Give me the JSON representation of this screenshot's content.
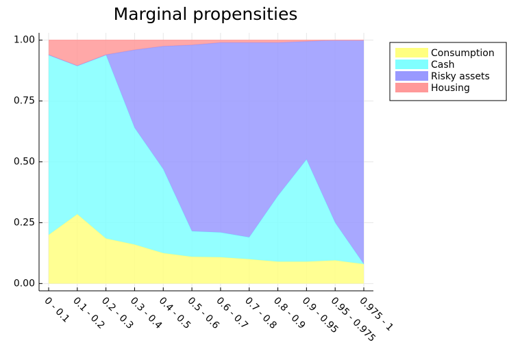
{
  "chart_data": {
    "type": "stacked-area",
    "title": "Marginal propensities",
    "categories": [
      "0 - 0.1",
      "0.1 - 0.2",
      "0.2 - 0.3",
      "0.3 - 0.4",
      "0.4 - 0.5",
      "0.5 - 0.6",
      "0.6 - 0.7",
      "0.7 - 0.8",
      "0.8 - 0.9",
      "0.9 - 0.95",
      "0.95 - 0.975",
      "0.975 - 1"
    ],
    "series": [
      {
        "name": "Consumption",
        "color": "#ffff80",
        "values": [
          0.2,
          0.285,
          0.185,
          0.16,
          0.125,
          0.11,
          0.108,
          0.1,
          0.09,
          0.09,
          0.095,
          0.08
        ]
      },
      {
        "name": "Cash",
        "color": "#80ffff",
        "values": [
          0.74,
          0.61,
          0.755,
          0.48,
          0.345,
          0.105,
          0.102,
          0.09,
          0.27,
          0.42,
          0.155,
          0.0
        ]
      },
      {
        "name": "Risky assets",
        "color": "#9999ff",
        "values": [
          0,
          0,
          0,
          0.32,
          0.505,
          0.765,
          0.78,
          0.8,
          0.63,
          0.485,
          0.75,
          0.92
        ]
      },
      {
        "name": "Housing",
        "color": "#ff9999",
        "values": [
          0.06,
          0.105,
          0.06,
          0.04,
          0.025,
          0.02,
          0.01,
          0.01,
          0.01,
          0.005,
          0,
          0
        ]
      }
    ],
    "ylim": [
      -0.03,
      1.03
    ],
    "yticks": [
      {
        "value": 0,
        "label": "0.00"
      },
      {
        "value": 0.25,
        "label": "0.25"
      },
      {
        "value": 0.5,
        "label": "0.50"
      },
      {
        "value": 0.75,
        "label": "0.75"
      },
      {
        "value": 1,
        "label": "1.00"
      }
    ],
    "grid": true,
    "legend": "outside-top-right"
  }
}
